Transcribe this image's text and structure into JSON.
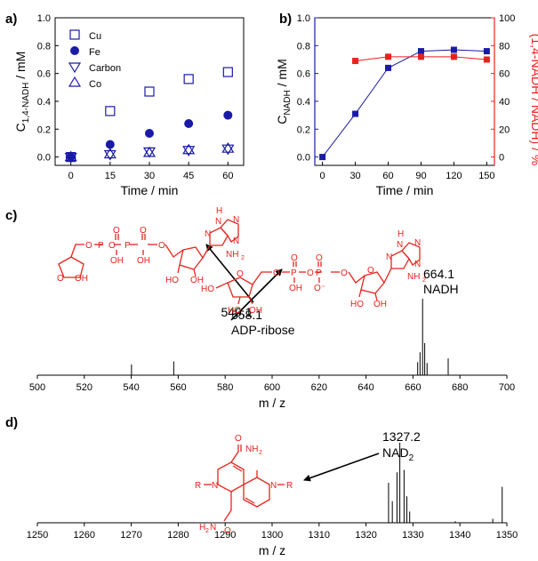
{
  "panels": {
    "a": "a)",
    "b": "b)",
    "c": "c)",
    "d": "d)"
  },
  "colors": {
    "blue": "#1a1aa8",
    "red": "#e8231d",
    "black": "#000000"
  },
  "chart_data": [
    {
      "id": "a",
      "type": "scatter",
      "xlabel": "Time / min",
      "ylabel_main": "C",
      "ylabel_sub": "1,4-NADH",
      "ylabel_tail": " / mM",
      "xlim": [
        -6,
        66
      ],
      "ylim": [
        -0.06,
        1.0
      ],
      "xticks": [
        "0",
        "15",
        "30",
        "45",
        "60"
      ],
      "yticks": [
        "0.0",
        "0.2",
        "0.4",
        "0.6",
        "0.8",
        "1.0"
      ],
      "legend_position": "top-left",
      "series": [
        {
          "name": "Cu",
          "marker": "square-open",
          "x": [
            0,
            15,
            30,
            45,
            60
          ],
          "y": [
            0.0,
            0.33,
            0.47,
            0.56,
            0.61
          ]
        },
        {
          "name": "Fe",
          "marker": "circle-filled",
          "x": [
            0,
            15,
            30,
            45,
            60
          ],
          "y": [
            0.0,
            0.09,
            0.17,
            0.24,
            0.3
          ]
        },
        {
          "name": "Carbon",
          "marker": "triangle-down-open",
          "x": [
            0,
            15,
            30,
            45,
            60
          ],
          "y": [
            0.0,
            0.02,
            0.04,
            0.05,
            0.06
          ]
        },
        {
          "name": "Co",
          "marker": "triangle-up-open",
          "x": [
            0,
            15,
            30,
            45,
            60
          ],
          "y": [
            0.0,
            0.02,
            0.03,
            0.05,
            0.06
          ]
        }
      ]
    },
    {
      "id": "b",
      "type": "line",
      "xlabel": "Time / min",
      "ylabel_left_main": "C",
      "ylabel_left_sub": "NADH",
      "ylabel_left_tail": " / mM",
      "ylabel_right": "(1,4-NADH / NADH) / %",
      "xlim": [
        -7,
        157
      ],
      "ylim_left": [
        -0.06,
        1.0
      ],
      "ylim_right": [
        -6,
        100
      ],
      "xticks": [
        "0",
        "30",
        "60",
        "90",
        "120",
        "150"
      ],
      "yticks_left": [
        "0.0",
        "0.2",
        "0.4",
        "0.6",
        "0.8",
        "1.0"
      ],
      "yticks_right": [
        "0",
        "20",
        "40",
        "60",
        "80",
        "100"
      ],
      "series": [
        {
          "axis": "left",
          "color": "#1a1aa8",
          "x": [
            0,
            30,
            60,
            90,
            120,
            150
          ],
          "y": [
            0.0,
            0.31,
            0.64,
            0.76,
            0.77,
            0.76
          ]
        },
        {
          "axis": "right",
          "color": "#e8231d",
          "x": [
            30,
            60,
            90,
            120,
            150
          ],
          "y": [
            69,
            72,
            72,
            72,
            70
          ]
        }
      ]
    },
    {
      "id": "c",
      "type": "bar",
      "xlabel": "m / z",
      "xlim": [
        500,
        700
      ],
      "xticks": [
        "500",
        "520",
        "540",
        "560",
        "580",
        "600",
        "620",
        "640",
        "660",
        "680",
        "700"
      ],
      "peaks": [
        {
          "mz": 540.1,
          "intensity": 0.14
        },
        {
          "mz": 558.1,
          "intensity": 0.18
        },
        {
          "mz": 662.0,
          "intensity": 0.17
        },
        {
          "mz": 663.0,
          "intensity": 0.3
        },
        {
          "mz": 664.1,
          "intensity": 1.0
        },
        {
          "mz": 665.0,
          "intensity": 0.42
        },
        {
          "mz": 666.0,
          "intensity": 0.16
        },
        {
          "mz": 675.0,
          "intensity": 0.22
        }
      ],
      "annotations": [
        {
          "lines": [
            "540.1"
          ],
          "color": "#e8231d"
        },
        {
          "lines": [
            "558.1",
            "ADP-ribose"
          ],
          "color": "#e8231d"
        },
        {
          "lines": [
            "664.1",
            "NADH"
          ],
          "color": "#000000"
        }
      ]
    },
    {
      "id": "d",
      "type": "bar",
      "xlabel": "m / z",
      "xlim": [
        1250,
        1350
      ],
      "xticks": [
        "1250",
        "1260",
        "1270",
        "1280",
        "1290",
        "1300",
        "1310",
        "1320",
        "1330",
        "1340",
        "1350"
      ],
      "peaks": [
        {
          "mz": 1324.8,
          "intensity": 0.5
        },
        {
          "mz": 1325.6,
          "intensity": 0.27
        },
        {
          "mz": 1326.6,
          "intensity": 0.63
        },
        {
          "mz": 1327.2,
          "intensity": 1.0
        },
        {
          "mz": 1328.1,
          "intensity": 0.66
        },
        {
          "mz": 1328.7,
          "intensity": 0.33
        },
        {
          "mz": 1329.3,
          "intensity": 0.14
        },
        {
          "mz": 1339.0,
          "intensity": 0.02
        },
        {
          "mz": 1347.0,
          "intensity": 0.05
        },
        {
          "mz": 1349.0,
          "intensity": 0.45
        }
      ],
      "annotation": {
        "mz": "1327.2",
        "label": "NAD",
        "label_sub": "2",
        "color": "#e8231d"
      }
    }
  ],
  "structures": {
    "amp_ribose": {
      "atoms": [
        "O",
        "P",
        "P",
        "O",
        "O",
        "O",
        "OH",
        "OH",
        "O",
        "O",
        "OH",
        "HO",
        "OH",
        "N",
        "N",
        "N",
        "N",
        "H",
        "NH",
        "2"
      ]
    },
    "adp_ribose": {
      "atoms": [
        "HO",
        "O",
        "O",
        "O",
        "P",
        "P",
        "O",
        "O",
        "O",
        "O",
        "OH",
        "O⁻",
        "HO",
        "OH",
        "HO",
        "OH",
        "N",
        "N",
        "N",
        "N",
        "H",
        "NH",
        "2"
      ]
    },
    "dimer": {
      "atoms": [
        "O",
        "NH",
        "2",
        "N",
        "R",
        "N",
        "R",
        "H",
        "2",
        "N",
        "O"
      ]
    }
  }
}
